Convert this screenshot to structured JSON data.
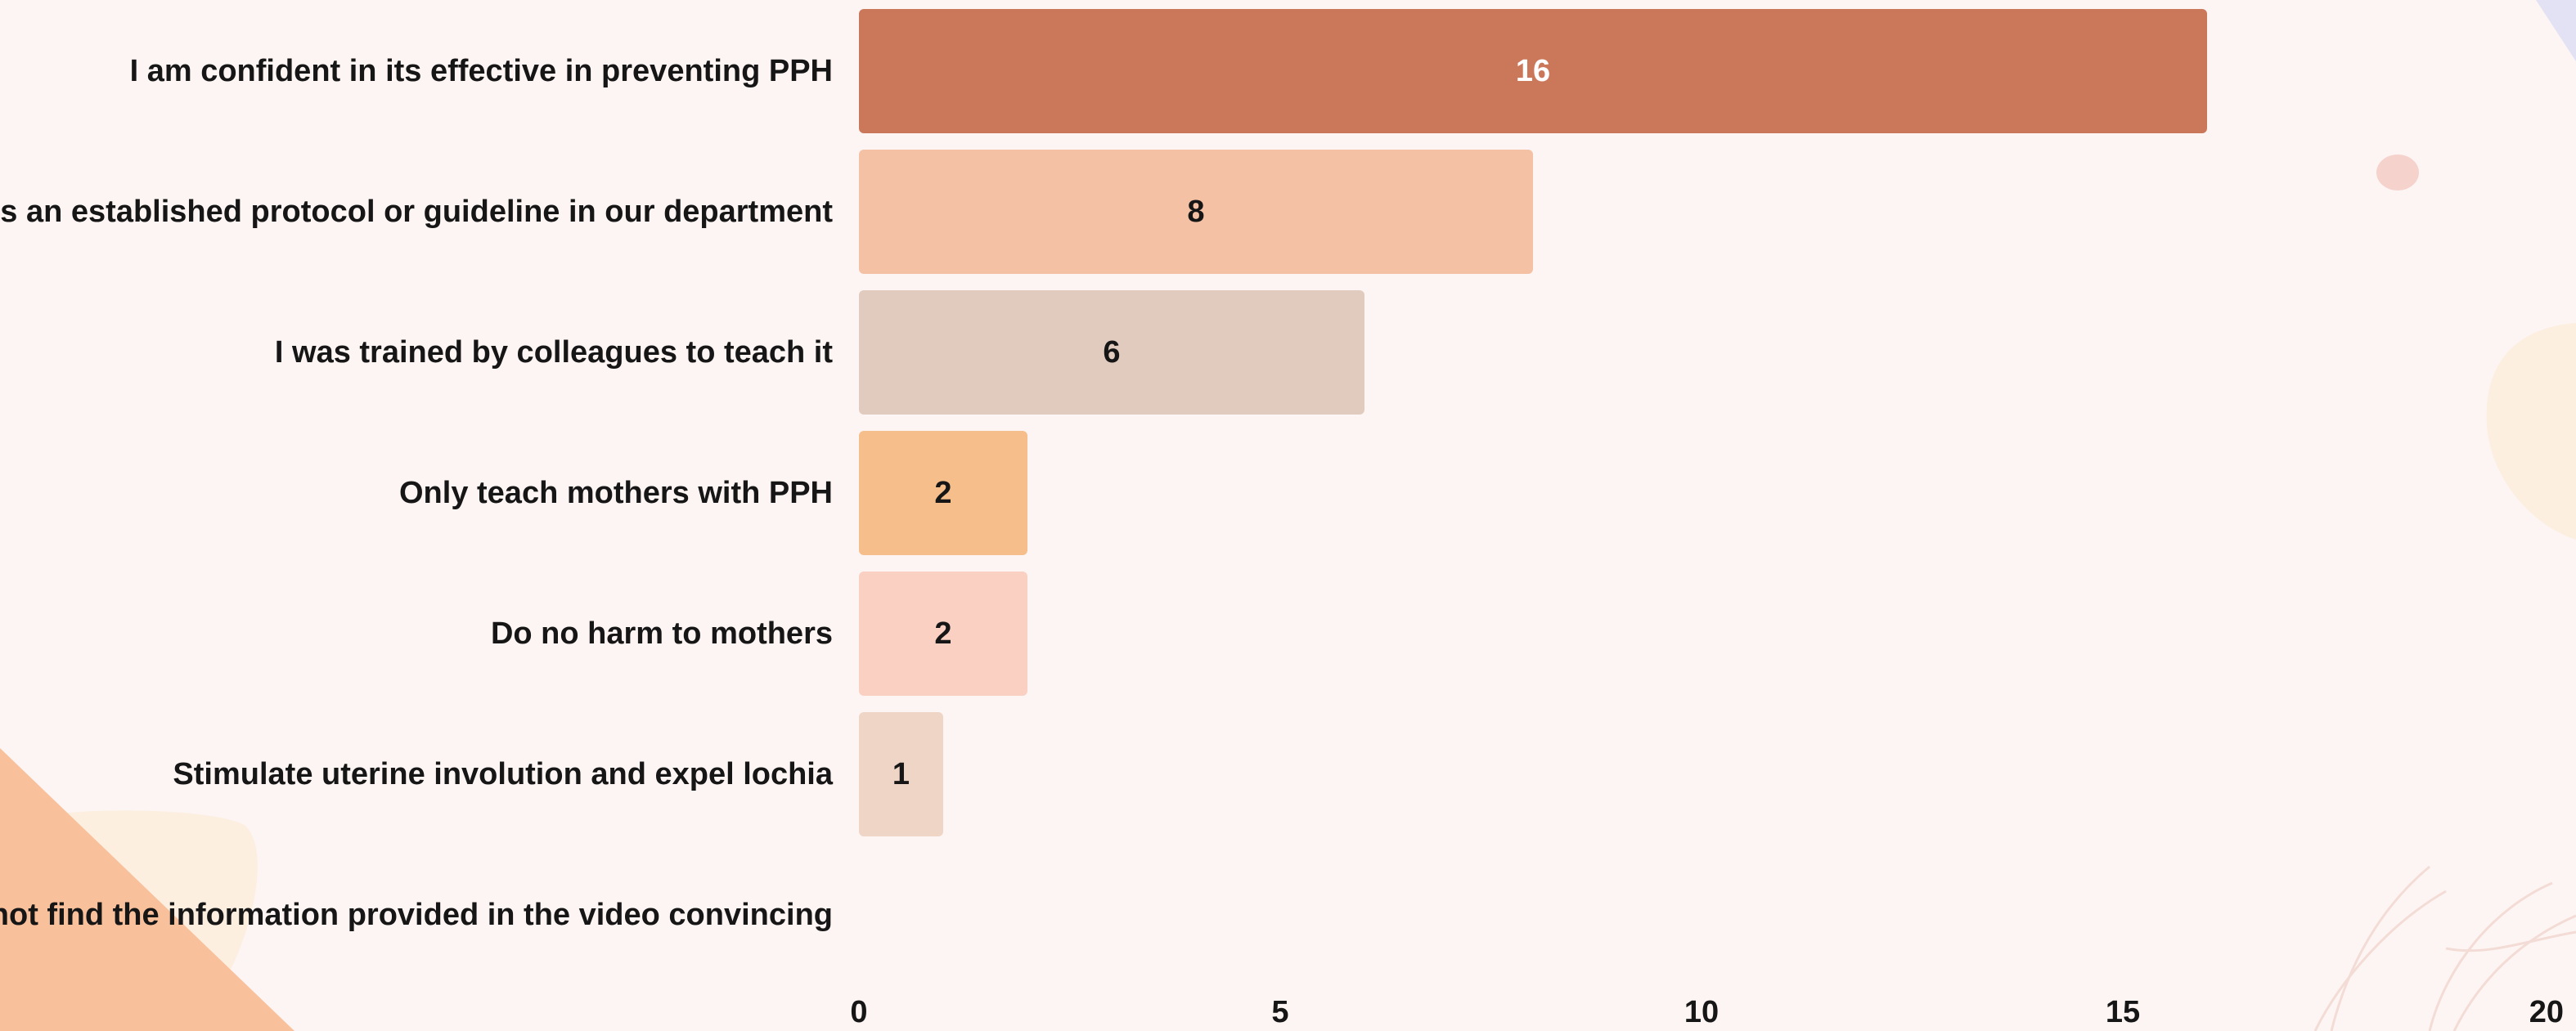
{
  "chart_data": {
    "type": "bar",
    "orientation": "horizontal",
    "categories": [
      "I am confident in its effective in preventing PPH",
      "It is an established protocol or guideline in our department",
      "I was trained by colleagues to teach it",
      "Only teach mothers with PPH",
      "Do no harm to mothers",
      "Stimulate uterine involution and expel lochia",
      "I did not find the information provided in the video convincing"
    ],
    "values": [
      16,
      8,
      6,
      2,
      2,
      1,
      0
    ],
    "value_labels": [
      "16",
      "8",
      "6",
      "2",
      "2",
      "1",
      ""
    ],
    "bar_colors": [
      "#cb785a",
      "#f4c1a4",
      "#e0cbbe",
      "#f6be8a",
      "#f9d0c2",
      "#eed5c6",
      "#eed5c6"
    ],
    "value_label_colors": [
      "#ffffff",
      "#161616",
      "#161616",
      "#161616",
      "#161616",
      "#161616",
      "#161616"
    ],
    "xlim": [
      0,
      20
    ],
    "xticks": [
      "0",
      "5",
      "10",
      "15",
      "20"
    ],
    "grid": false,
    "legend": "none"
  }
}
